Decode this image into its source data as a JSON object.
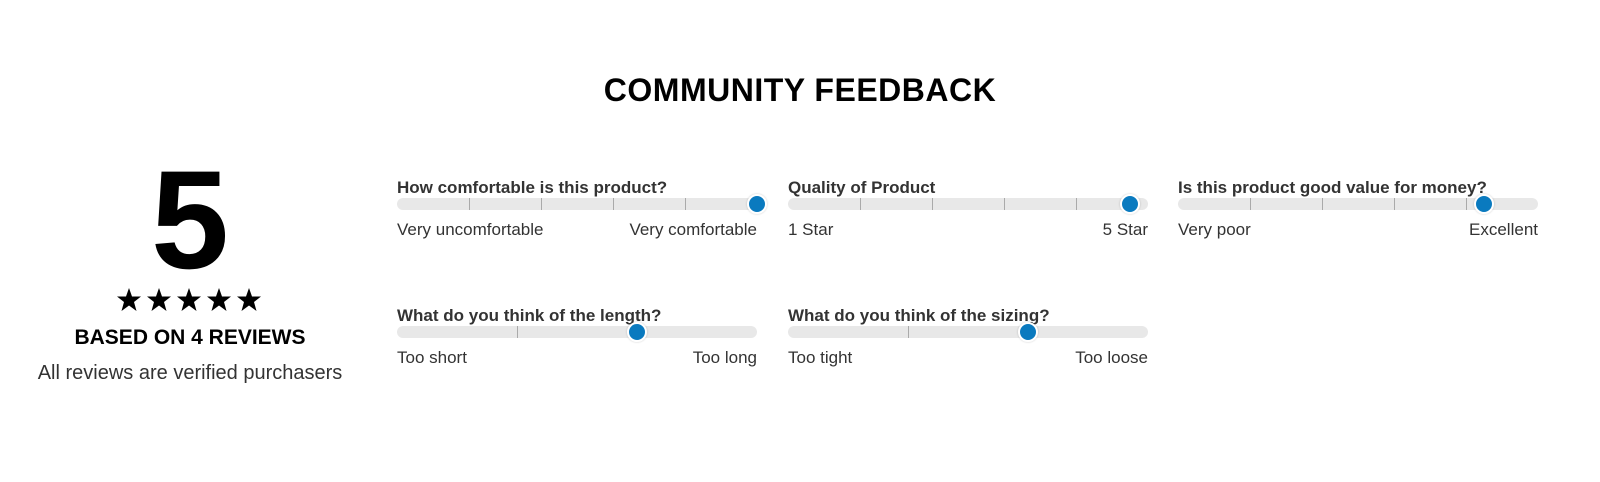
{
  "title": "COMMUNITY FEEDBACK",
  "summary": {
    "rating": 5,
    "reviews_text": "BASED ON 4 REVIEWS",
    "note": "All reviews are verified purchasers"
  },
  "sliders": [
    {
      "question": "How comfortable is this product?",
      "min_label": "Very uncomfortable",
      "max_label": "Very comfortable",
      "value": 1.0
    },
    {
      "question": "Quality of Product",
      "min_label": "1 Star",
      "max_label": "5 Star",
      "value": 0.95
    },
    {
      "question": "Is this product good value for money?",
      "min_label": "Very poor",
      "max_label": "Excellent",
      "value": 0.85
    },
    {
      "question": "What do you think of the length?",
      "min_label": "Too short",
      "max_label": "Too long",
      "value": 0.667
    },
    {
      "question": "What do you think of the sizing?",
      "min_label": "Too tight",
      "max_label": "Too loose",
      "value": 0.667
    }
  ]
}
